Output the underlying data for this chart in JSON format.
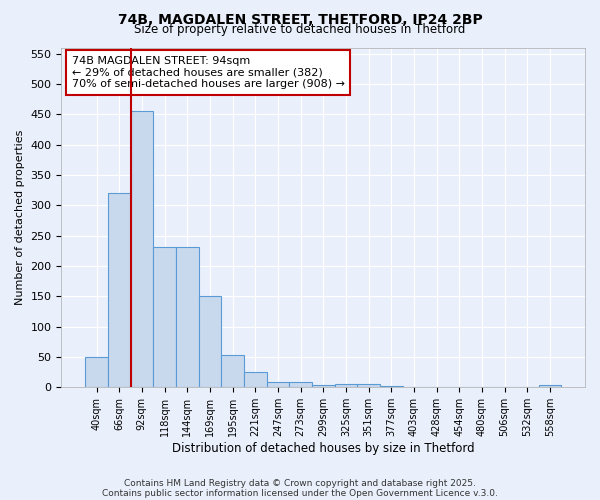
{
  "title1": "74B, MAGDALEN STREET, THETFORD, IP24 2BP",
  "title2": "Size of property relative to detached houses in Thetford",
  "xlabel": "Distribution of detached houses by size in Thetford",
  "ylabel": "Number of detached properties",
  "bar_labels": [
    "40sqm",
    "66sqm",
    "92sqm",
    "118sqm",
    "144sqm",
    "169sqm",
    "195sqm",
    "221sqm",
    "247sqm",
    "273sqm",
    "299sqm",
    "325sqm",
    "351sqm",
    "377sqm",
    "403sqm",
    "428sqm",
    "454sqm",
    "480sqm",
    "506sqm",
    "532sqm",
    "558sqm"
  ],
  "bar_values": [
    50,
    320,
    455,
    231,
    231,
    150,
    54,
    25,
    9,
    9,
    4,
    5,
    5,
    3,
    0,
    0,
    0,
    0,
    0,
    0,
    4
  ],
  "bar_color": "#c8d9ee",
  "bar_edge_color": "#5b9bd5",
  "vline_color": "#c00000",
  "vline_index": 2,
  "annotation_text": "74B MAGDALEN STREET: 94sqm\n← 29% of detached houses are smaller (382)\n70% of semi-detached houses are larger (908) →",
  "annotation_box_color": "#ffffff",
  "annotation_border_color": "#c00000",
  "ylim": [
    0,
    560
  ],
  "yticks": [
    0,
    50,
    100,
    150,
    200,
    250,
    300,
    350,
    400,
    450,
    500,
    550
  ],
  "background_color": "#eaf0fb",
  "plot_bg_color": "#eaf0fb",
  "grid_color": "#ffffff",
  "footer1": "Contains HM Land Registry data © Crown copyright and database right 2025.",
  "footer2": "Contains public sector information licensed under the Open Government Licence v.3.0."
}
